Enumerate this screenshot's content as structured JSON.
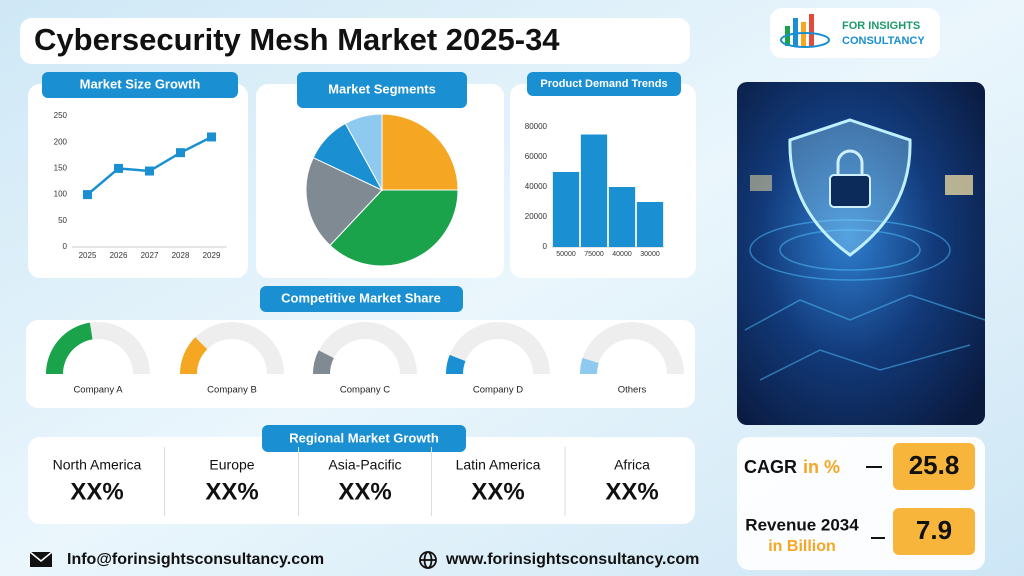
{
  "header": {
    "title": "Cybersecurity Mesh Market 2025-34"
  },
  "logo": {
    "line1": "FOR INSIGHTS",
    "line2": "CONSULTANCY"
  },
  "chart_data": [
    {
      "type": "line",
      "title": "Market Size Growth",
      "categories": [
        "2025",
        "2026",
        "2027",
        "2028",
        "2029"
      ],
      "values": [
        100,
        150,
        145,
        180,
        210
      ],
      "color": "#1a8fd1",
      "ylim": [
        0,
        250
      ],
      "yticks": [
        0,
        50,
        100,
        150,
        200,
        250
      ],
      "grid": false
    },
    {
      "type": "pie",
      "title": "Market Segments",
      "values": [
        25,
        37,
        20,
        10,
        8
      ],
      "colors": [
        "#f5a623",
        "#1aa34a",
        "#7f8a93",
        "#1a8fd1",
        "#8ec9f0"
      ]
    },
    {
      "type": "bar",
      "title": "Product Demand Trends",
      "categories": [
        "50000",
        "75000",
        "40000",
        "30000"
      ],
      "values": [
        50000,
        75000,
        40000,
        30000
      ],
      "color": "#1a8fd1",
      "ylim": [
        0,
        80000
      ],
      "yticks": [
        0,
        20000,
        40000,
        60000,
        80000
      ],
      "grid": false
    },
    {
      "type": "gauge",
      "title": "Competitive Market Share",
      "categories": [
        "Company A",
        "Company B",
        "Company C",
        "Company D",
        "Others"
      ],
      "values": [
        45,
        25,
        15,
        12,
        10
      ],
      "colors": [
        "#1aa34a",
        "#f5a623",
        "#7f8a93",
        "#1a8fd1",
        "#8ec9f0"
      ],
      "ylim": [
        0,
        100
      ]
    }
  ],
  "regional": {
    "title": "Regional Market Growth",
    "regions": [
      {
        "name": "North America",
        "value": "XX%"
      },
      {
        "name": "Europe",
        "value": "XX%"
      },
      {
        "name": "Asia-Pacific",
        "value": "XX%"
      },
      {
        "name": "Latin America",
        "value": "XX%"
      },
      {
        "name": "Africa",
        "value": "XX%"
      }
    ]
  },
  "kpis": [
    {
      "label": "CAGR",
      "unit": "in %",
      "value": 25.8
    },
    {
      "label": "Revenue 2034",
      "unit": "in Billion",
      "value": 7.9
    }
  ],
  "footer": {
    "email": "Info@forinsightsconsultancy.com",
    "website": "www.forinsightsconsultancy.com"
  }
}
